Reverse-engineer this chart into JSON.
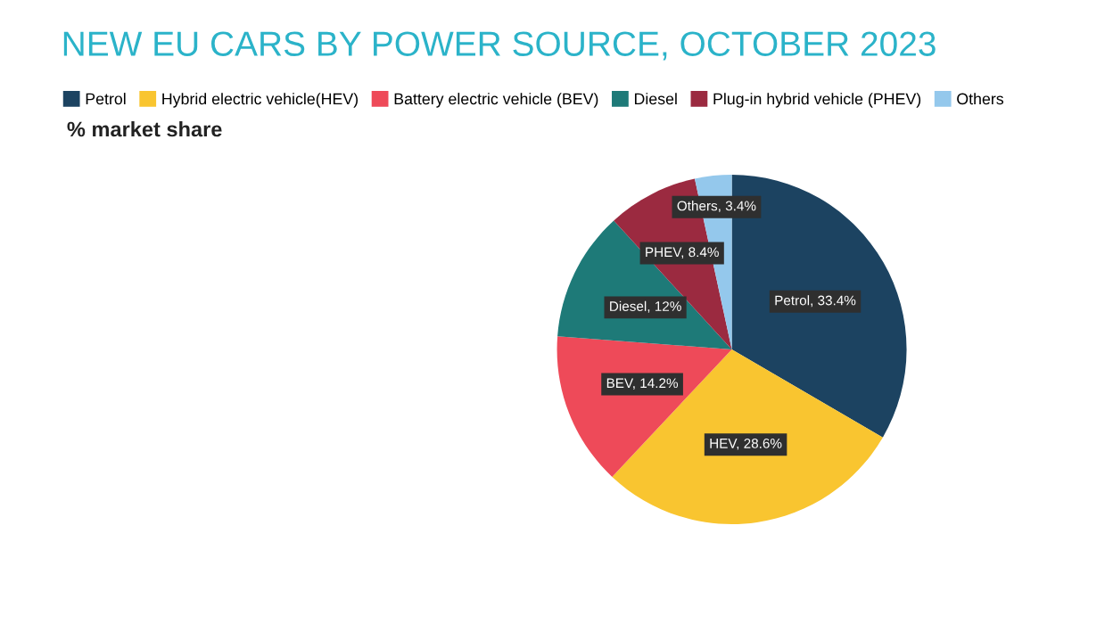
{
  "chart_data": {
    "type": "pie",
    "title": "NEW EU CARS BY POWER SOURCE, OCTOBER 2023",
    "subtitle": "% market share",
    "categories": [
      "Petrol",
      "Hybrid electric vehicle(HEV)",
      "Battery electric vehicle (BEV)",
      "Diesel",
      "Plug-in hybrid vehicle (PHEV)",
      "Others"
    ],
    "values": [
      33.4,
      28.6,
      14.2,
      12,
      8.4,
      3.4
    ],
    "colors": [
      "#1c4361",
      "#f9c530",
      "#ee4a59",
      "#1e7a78",
      "#9b2a40",
      "#94c8ec"
    ],
    "value_labels": [
      "Petrol, 33.4%",
      "HEV, 28.6%",
      "BEV, 14.2%",
      "Diesel, 12%",
      "PHEV, 8.4%",
      "Others, 3.4%"
    ],
    "legend": "top left"
  }
}
